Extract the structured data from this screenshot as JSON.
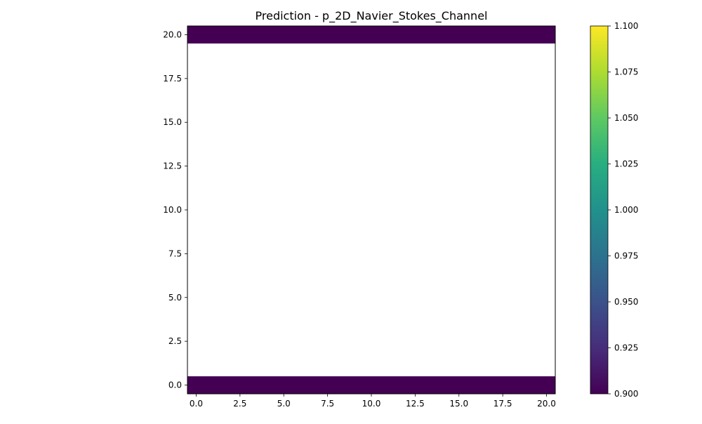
{
  "chart_data": {
    "type": "heatmap",
    "title": "Prediction - p_2D_Navier_Stokes_Channel",
    "xlabel": "",
    "ylabel": "",
    "xlim": [
      -0.5,
      20.5
    ],
    "ylim": [
      -0.5,
      20.5
    ],
    "x_ticks": [
      0.0,
      2.5,
      5.0,
      7.5,
      10.0,
      12.5,
      15.0,
      17.5,
      20.0
    ],
    "x_tick_labels": [
      "0.0",
      "2.5",
      "5.0",
      "7.5",
      "10.0",
      "12.5",
      "15.0",
      "17.5",
      "20.0"
    ],
    "y_ticks": [
      0.0,
      2.5,
      5.0,
      7.5,
      10.0,
      12.5,
      15.0,
      17.5,
      20.0
    ],
    "y_tick_labels": [
      "0.0",
      "2.5",
      "5.0",
      "7.5",
      "10.0",
      "12.5",
      "15.0",
      "17.5",
      "20.0"
    ],
    "grid": false,
    "colormap": "viridis",
    "cells": [
      {
        "row": 0,
        "x_range": [
          -0.5,
          20.5
        ],
        "value": 0.9
      },
      {
        "row": 20,
        "x_range": [
          -0.5,
          20.5
        ],
        "value": 0.9
      }
    ],
    "empty_region_rows": [
      1,
      19
    ],
    "colorbar": {
      "range": [
        0.9,
        1.1
      ],
      "ticks": [
        0.9,
        0.925,
        0.95,
        0.975,
        1.0,
        1.025,
        1.05,
        1.075,
        1.1
      ],
      "tick_labels": [
        "0.900",
        "0.925",
        "0.950",
        "0.975",
        "1.000",
        "1.025",
        "1.050",
        "1.075",
        "1.100"
      ],
      "colors": [
        "#440154",
        "#472d7b",
        "#3b528b",
        "#2c728e",
        "#21918c",
        "#28ae80",
        "#5ec962",
        "#addc30",
        "#fde725"
      ]
    }
  }
}
